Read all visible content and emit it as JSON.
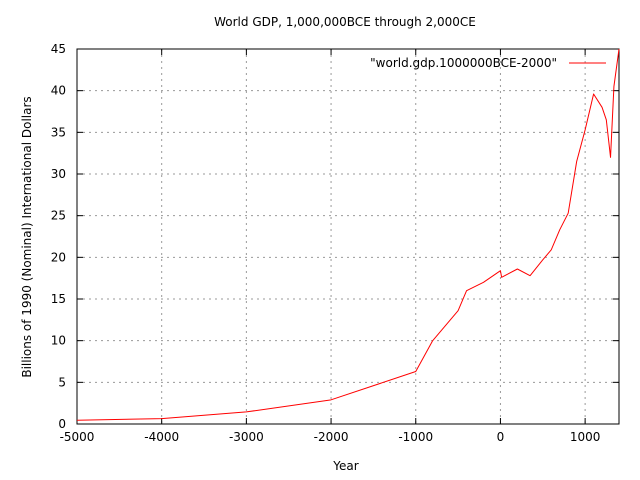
{
  "chart_data": {
    "type": "line",
    "title": "World GDP, 1,000,000BCE through 2,000CE",
    "xlabel": "Year",
    "ylabel": "Billions of 1990 (Nominal) International Dollars",
    "xlim": [
      -5000,
      1400
    ],
    "ylim": [
      0,
      45
    ],
    "x_ticks": [
      -5000,
      -4000,
      -3000,
      -2000,
      -1000,
      0,
      1000
    ],
    "y_ticks": [
      0,
      5,
      10,
      15,
      20,
      25,
      30,
      35,
      40,
      45
    ],
    "grid": true,
    "legend_position": "top-right",
    "series": [
      {
        "name": "\"world.gdp.1000000BCE-2000\"",
        "color": "#ff0000",
        "x": [
          -5000,
          -4000,
          -3000,
          -2000,
          -1000,
          -800,
          -500,
          -400,
          -200,
          0,
          14,
          200,
          350,
          500,
          600,
          700,
          800,
          900,
          1000,
          1100,
          1200,
          1250,
          1300,
          1340,
          1400
        ],
        "y": [
          0.45,
          0.65,
          1.45,
          2.9,
          6.3,
          10.0,
          13.6,
          16.0,
          17.0,
          18.4,
          17.6,
          18.6,
          17.8,
          19.7,
          20.9,
          23.3,
          25.3,
          31.5,
          35.3,
          39.6,
          38.0,
          36.5,
          32.0,
          40.5,
          45.0
        ]
      }
    ]
  }
}
